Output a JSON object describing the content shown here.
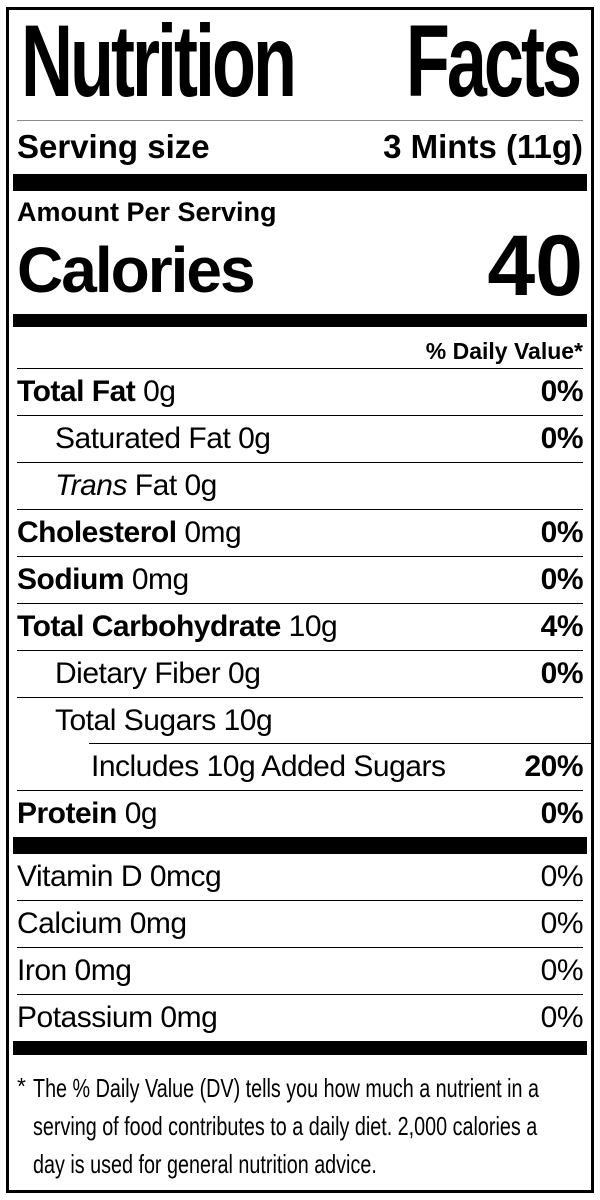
{
  "colors": {
    "ink": "#000000",
    "paper": "#ffffff",
    "hairline": "#8a8a8a"
  },
  "label": {
    "title": {
      "word1": "Nutrition",
      "word2": "Facts"
    },
    "serving_size": {
      "label": "Serving size",
      "value": "3 Mints (11g)"
    },
    "amount_per_serving": "Amount Per Serving",
    "calories": {
      "label": "Calories",
      "value": "40"
    },
    "daily_value_header": "% Daily Value*",
    "nutrients": [
      {
        "name": "Total Fat",
        "name_bold": true,
        "name_italic": false,
        "amount": "0g",
        "dv": "0%",
        "dv_bold": true,
        "indent": 0,
        "rule_below": true,
        "partial_rule_above": false
      },
      {
        "name": "Saturated Fat",
        "name_bold": false,
        "name_italic": false,
        "amount": "0g",
        "dv": "0%",
        "dv_bold": true,
        "indent": 1,
        "rule_below": true,
        "partial_rule_above": false
      },
      {
        "name": "Trans",
        "name_bold": false,
        "name_italic": true,
        "amount": "Fat 0g",
        "dv": "",
        "dv_bold": false,
        "indent": 1,
        "rule_below": true,
        "partial_rule_above": false
      },
      {
        "name": "Cholesterol",
        "name_bold": true,
        "name_italic": false,
        "amount": "0mg",
        "dv": "0%",
        "dv_bold": true,
        "indent": 0,
        "rule_below": true,
        "partial_rule_above": false
      },
      {
        "name": "Sodium",
        "name_bold": true,
        "name_italic": false,
        "amount": "0mg",
        "dv": "0%",
        "dv_bold": true,
        "indent": 0,
        "rule_below": true,
        "partial_rule_above": false
      },
      {
        "name": "Total Carbohydrate",
        "name_bold": true,
        "name_italic": false,
        "amount": "10g",
        "dv": "4%",
        "dv_bold": true,
        "indent": 0,
        "rule_below": true,
        "partial_rule_above": false
      },
      {
        "name": "Dietary Fiber",
        "name_bold": false,
        "name_italic": false,
        "amount": "0g",
        "dv": "0%",
        "dv_bold": true,
        "indent": 1,
        "rule_below": true,
        "partial_rule_above": false
      },
      {
        "name": "Total Sugars",
        "name_bold": false,
        "name_italic": false,
        "amount": "10g",
        "dv": "",
        "dv_bold": false,
        "indent": 1,
        "rule_below": false,
        "partial_rule_above": false
      },
      {
        "name": "Includes 10g Added Sugars",
        "name_bold": false,
        "name_italic": false,
        "amount": "",
        "dv": "20%",
        "dv_bold": true,
        "indent": 2,
        "rule_below": true,
        "partial_rule_above": true
      },
      {
        "name": "Protein",
        "name_bold": true,
        "name_italic": false,
        "amount": "0g",
        "dv": "0%",
        "dv_bold": true,
        "indent": 0,
        "rule_below": false,
        "partial_rule_above": false
      }
    ],
    "micronutrients": [
      {
        "name": "Vitamin D",
        "amount": "0mcg",
        "dv": "0%",
        "rule_below": true
      },
      {
        "name": "Calcium",
        "amount": "0mg",
        "dv": "0%",
        "rule_below": true
      },
      {
        "name": "Iron",
        "amount": "0mg",
        "dv": "0%",
        "rule_below": true
      },
      {
        "name": "Potassium",
        "amount": "0mg",
        "dv": "0%",
        "rule_below": false
      }
    ],
    "footnote": {
      "marker": "*",
      "text": "The % Daily Value (DV) tells you how much a nutrient in a serving of food contributes to a daily diet. 2,000 calories a day is used for general nutrition advice."
    }
  }
}
